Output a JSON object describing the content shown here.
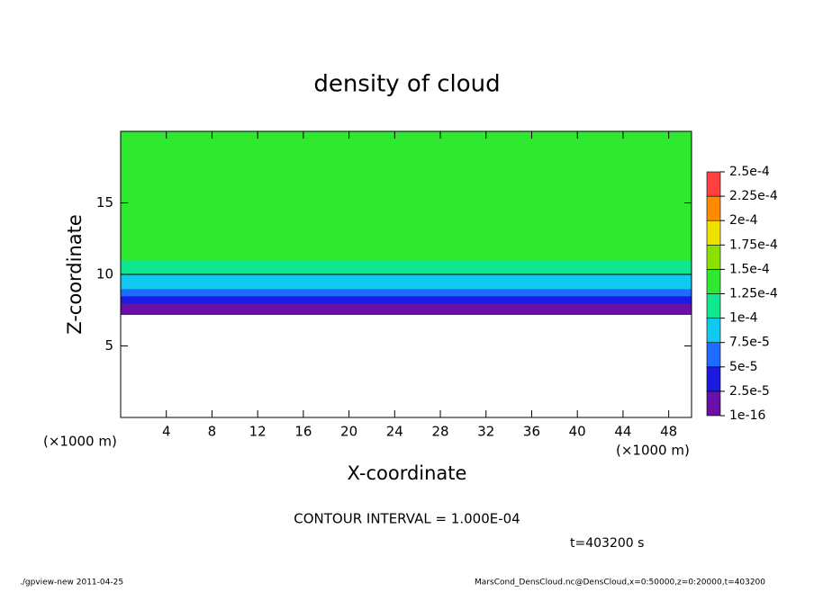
{
  "chart_data": {
    "type": "contour",
    "title": "density of cloud",
    "xlabel": "X-coordinate",
    "ylabel": "Z-coordinate",
    "xunit": "(×1000 m)",
    "xlim": [
      0,
      50
    ],
    "xticks": [
      4,
      8,
      12,
      16,
      20,
      24,
      28,
      32,
      36,
      40,
      44,
      48
    ],
    "ylim": [
      0,
      20
    ],
    "yticks": [
      5,
      10,
      15
    ],
    "levels": [
      {
        "value": 1e-16,
        "label": "1e-16"
      },
      {
        "value": 2.5e-05,
        "label": "2.5e-5"
      },
      {
        "value": 5e-05,
        "label": "5e-5"
      },
      {
        "value": 7.5e-05,
        "label": "7.5e-5"
      },
      {
        "value": 0.0001,
        "label": "1e-4"
      },
      {
        "value": 0.000125,
        "label": "1.25e-4"
      },
      {
        "value": 0.00015,
        "label": "1.5e-4"
      },
      {
        "value": 0.000175,
        "label": "1.75e-4"
      },
      {
        "value": 0.0002,
        "label": "2e-4"
      },
      {
        "value": 0.000225,
        "label": "2.25e-4"
      },
      {
        "value": 0.00025,
        "label": "2.5e-4"
      }
    ],
    "colors": [
      "#6a0fa8",
      "#1a1ae0",
      "#1e6cff",
      "#10c8f0",
      "#10e890",
      "#30e830",
      "#8ae000",
      "#f0e000",
      "#ff8a00",
      "#ff4040"
    ],
    "profile": {
      "z": [
        7.2,
        7.5,
        8,
        8.5,
        9,
        9.5,
        10,
        11,
        12,
        14,
        16,
        18
      ],
      "values": [
        1e-05,
        2e-05,
        3.5e-05,
        5.5e-05,
        7.5e-05,
        9e-05,
        0.0001,
        0.00013,
        0.00014,
        0.000145,
        0.00014,
        0.00013
      ]
    },
    "contour_level": 0.0001,
    "contour_label": "CONTOUR INTERVAL = 1.000E-04",
    "time_label": "t=403200 s",
    "footer_left": "./gpview-new  2011-04-25",
    "footer_right": "MarsCond_DensCloud.nc@DensCloud,x=0:50000,z=0:20000,t=403200"
  }
}
